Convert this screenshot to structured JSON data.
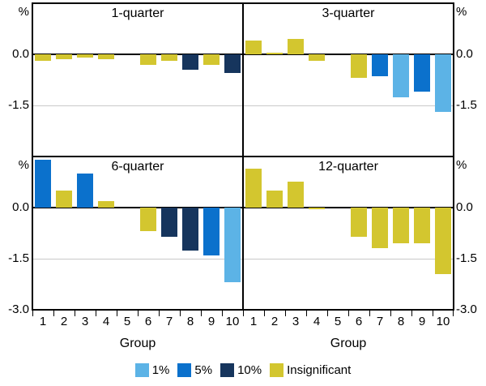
{
  "axes": {
    "unit_label": "%",
    "x_label": "Group",
    "y_tick_labels": [
      "0.0",
      "-1.5",
      "-3.0"
    ],
    "y_range": [
      -3.0,
      1.5
    ],
    "gridline_at": -1.5
  },
  "legend": {
    "items": [
      {
        "label": "1%",
        "color": "#5cb3e6"
      },
      {
        "label": "5%",
        "color": "#0b71cc"
      },
      {
        "label": "10%",
        "color": "#16355d"
      },
      {
        "label": "Insignificant",
        "color": "#d3c62f"
      }
    ]
  },
  "chart_data": [
    {
      "type": "bar",
      "title": "1-quarter",
      "categories": [
        "1",
        "2",
        "3",
        "4",
        "5",
        "6",
        "7",
        "8",
        "9",
        "10"
      ],
      "values": [
        -0.2,
        -0.15,
        -0.1,
        -0.15,
        0,
        -0.3,
        -0.2,
        -0.45,
        -0.3,
        -0.55
      ],
      "significance": [
        "Insignificant",
        "Insignificant",
        "Insignificant",
        "Insignificant",
        null,
        "Insignificant",
        "Insignificant",
        "10%",
        "Insignificant",
        "10%"
      ],
      "xlabel": "Group",
      "ylabel": "%",
      "ylim": [
        -3.0,
        1.5
      ],
      "yticks": [
        0.0,
        -1.5,
        -3.0
      ]
    },
    {
      "type": "bar",
      "title": "3-quarter",
      "categories": [
        "1",
        "2",
        "3",
        "4",
        "5",
        "6",
        "7",
        "8",
        "9",
        "10"
      ],
      "values": [
        0.4,
        0.05,
        0.45,
        -0.2,
        0,
        -0.7,
        -0.65,
        -1.25,
        -1.1,
        -1.7
      ],
      "significance": [
        "Insignificant",
        "Insignificant",
        "Insignificant",
        "Insignificant",
        null,
        "Insignificant",
        "5%",
        "1%",
        "5%",
        "1%"
      ],
      "xlabel": "Group",
      "ylabel": "%",
      "ylim": [
        -3.0,
        1.5
      ],
      "yticks": [
        0.0,
        -1.5,
        -3.0
      ]
    },
    {
      "type": "bar",
      "title": "6-quarter",
      "categories": [
        "1",
        "2",
        "3",
        "4",
        "5",
        "6",
        "7",
        "8",
        "9",
        "10"
      ],
      "values": [
        1.4,
        0.5,
        1.0,
        0.2,
        0,
        -0.7,
        -0.85,
        -1.25,
        -1.4,
        -2.2
      ],
      "significance": [
        "5%",
        "Insignificant",
        "5%",
        "Insignificant",
        null,
        "Insignificant",
        "10%",
        "10%",
        "5%",
        "1%"
      ],
      "xlabel": "Group",
      "ylabel": "%",
      "ylim": [
        -3.0,
        1.5
      ],
      "yticks": [
        0.0,
        -1.5,
        -3.0
      ]
    },
    {
      "type": "bar",
      "title": "12-quarter",
      "categories": [
        "1",
        "2",
        "3",
        "4",
        "5",
        "6",
        "7",
        "8",
        "9",
        "10"
      ],
      "values": [
        1.15,
        0.5,
        0.75,
        -0.05,
        0,
        -0.85,
        -1.2,
        -1.05,
        -1.05,
        -1.95
      ],
      "significance": [
        "Insignificant",
        "Insignificant",
        "Insignificant",
        "Insignificant",
        null,
        "Insignificant",
        "Insignificant",
        "Insignificant",
        "Insignificant",
        "Insignificant"
      ],
      "xlabel": "Group",
      "ylabel": "%",
      "ylim": [
        -3.0,
        1.5
      ],
      "yticks": [
        0.0,
        -1.5,
        -3.0
      ]
    }
  ]
}
